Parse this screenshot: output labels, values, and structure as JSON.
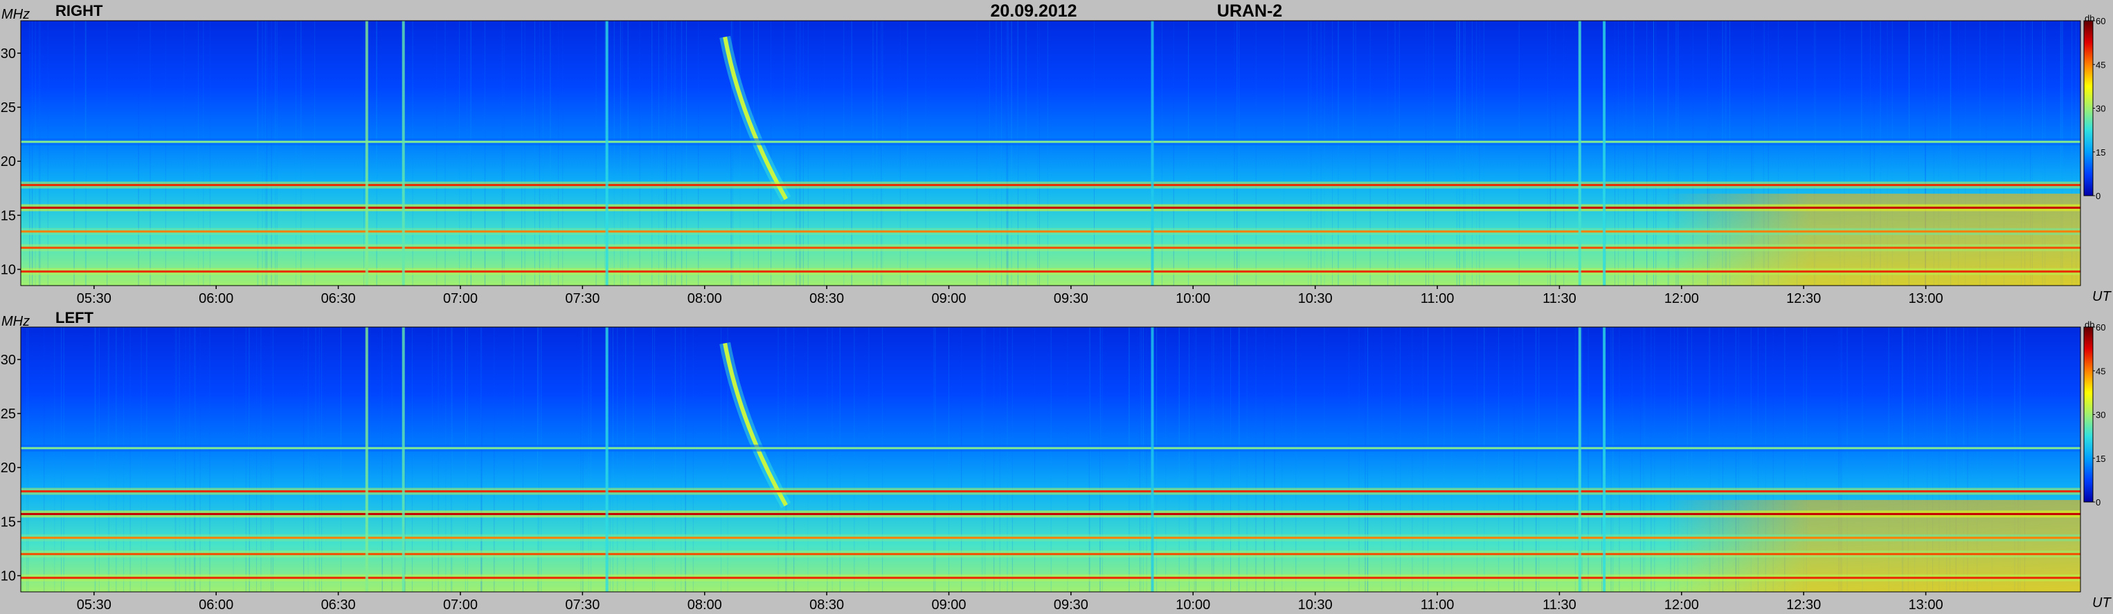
{
  "header": {
    "date": "20.09.2012",
    "instrument": "URAN-2"
  },
  "colors": {
    "background": "#c0c0c0",
    "colormap": [
      "#0000a8",
      "#0040ff",
      "#00a0ff",
      "#30e0e0",
      "#a0f070",
      "#ffff00",
      "#ff8000",
      "#e00000",
      "#600000"
    ]
  },
  "chart_data": [
    {
      "type": "heatmap",
      "title": "RIGHT",
      "ylabel": "MHz",
      "xlabel": "UT",
      "ylim": [
        8.5,
        33
      ],
      "xlim": [
        "05:12",
        "13:38"
      ],
      "xticks": [
        "05:30",
        "06:00",
        "06:30",
        "07:00",
        "07:30",
        "08:00",
        "08:30",
        "09:00",
        "09:30",
        "10:00",
        "10:30",
        "11:00",
        "11:30",
        "12:00",
        "12:30",
        "13:00"
      ],
      "yticks": [
        10,
        15,
        20,
        25,
        30
      ],
      "colorbar": {
        "label": "db",
        "range": [
          0,
          60
        ],
        "ticks": [
          0,
          15,
          30,
          45,
          60
        ]
      },
      "features": [
        {
          "kind": "drifting-burst",
          "time_start": "08:05",
          "time_end": "08:20",
          "freq_start": 31.5,
          "freq_end": 16.5,
          "level_db": 33
        },
        {
          "kind": "band",
          "freq": 17.8,
          "level_db": 50
        },
        {
          "kind": "band",
          "freq": 15.7,
          "level_db": 54
        },
        {
          "kind": "band",
          "freq": 13.5,
          "level_db": 45
        },
        {
          "kind": "band",
          "freq": 12.0,
          "level_db": 48
        },
        {
          "kind": "band",
          "freq": 9.8,
          "level_db": 50
        },
        {
          "kind": "band",
          "freq": 21.8,
          "level_db": 28
        },
        {
          "kind": "vertical-interference",
          "time": "06:37",
          "level_db": 28
        },
        {
          "kind": "vertical-interference",
          "time": "06:46",
          "level_db": 26
        },
        {
          "kind": "vertical-interference",
          "time": "07:36",
          "level_db": 22
        },
        {
          "kind": "vertical-interference",
          "time": "11:35",
          "level_db": 24
        },
        {
          "kind": "vertical-interference",
          "time": "11:41",
          "level_db": 22
        },
        {
          "kind": "vertical-interference",
          "time": "09:50",
          "level_db": 20
        },
        {
          "kind": "broadband-enhancement",
          "time_start": "11:56",
          "time_end": "13:38",
          "freq_start": 8.5,
          "freq_end": 17,
          "level_db": 42
        }
      ]
    },
    {
      "type": "heatmap",
      "title": "LEFT",
      "ylabel": "MHz",
      "xlabel": "UT",
      "ylim": [
        8.5,
        33
      ],
      "xlim": [
        "05:12",
        "13:38"
      ],
      "xticks": [
        "05:30",
        "06:00",
        "06:30",
        "07:00",
        "07:30",
        "08:00",
        "08:30",
        "09:00",
        "09:30",
        "10:00",
        "10:30",
        "11:00",
        "11:30",
        "12:00",
        "12:30",
        "13:00"
      ],
      "yticks": [
        10,
        15,
        20,
        25,
        30
      ],
      "colorbar": {
        "label": "db",
        "range": [
          0,
          60
        ],
        "ticks": [
          0,
          15,
          30,
          45,
          60
        ]
      },
      "features": [
        {
          "kind": "drifting-burst",
          "time_start": "08:05",
          "time_end": "08:20",
          "freq_start": 31.5,
          "freq_end": 16.5,
          "level_db": 33
        },
        {
          "kind": "band",
          "freq": 17.8,
          "level_db": 50
        },
        {
          "kind": "band",
          "freq": 15.7,
          "level_db": 54
        },
        {
          "kind": "band",
          "freq": 13.5,
          "level_db": 45
        },
        {
          "kind": "band",
          "freq": 12.0,
          "level_db": 48
        },
        {
          "kind": "band",
          "freq": 9.8,
          "level_db": 50
        },
        {
          "kind": "band",
          "freq": 21.8,
          "level_db": 28
        },
        {
          "kind": "vertical-interference",
          "time": "06:37",
          "level_db": 28
        },
        {
          "kind": "vertical-interference",
          "time": "06:46",
          "level_db": 26
        },
        {
          "kind": "vertical-interference",
          "time": "07:36",
          "level_db": 22
        },
        {
          "kind": "vertical-interference",
          "time": "11:35",
          "level_db": 24
        },
        {
          "kind": "vertical-interference",
          "time": "11:41",
          "level_db": 22
        },
        {
          "kind": "vertical-interference",
          "time": "09:50",
          "level_db": 20
        },
        {
          "kind": "broadband-enhancement",
          "time_start": "11:56",
          "time_end": "13:38",
          "freq_start": 8.5,
          "freq_end": 17,
          "level_db": 42
        }
      ]
    }
  ]
}
